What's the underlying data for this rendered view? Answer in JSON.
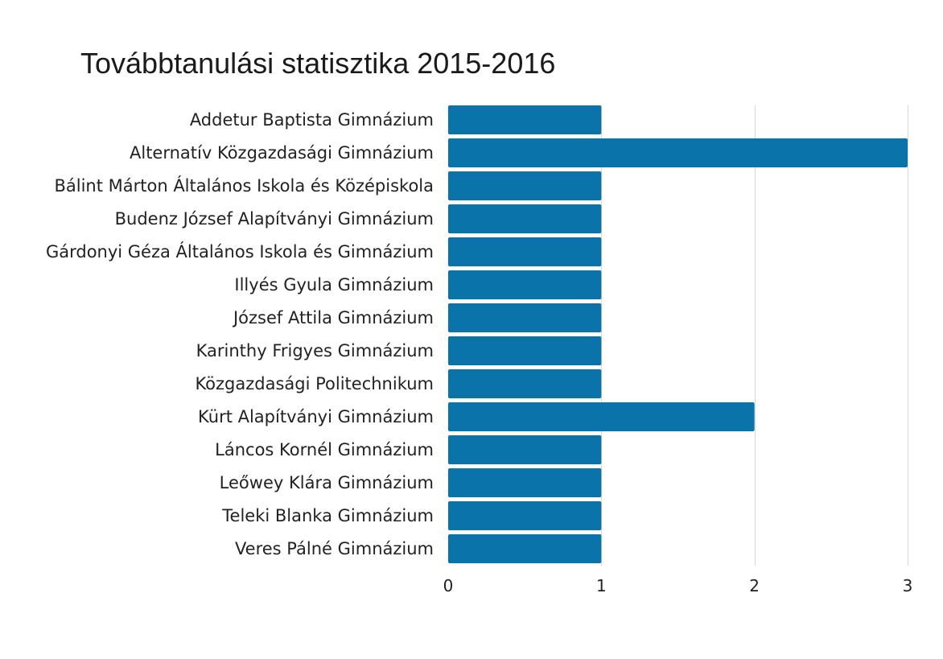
{
  "chart_data": {
    "type": "bar",
    "orientation": "horizontal",
    "title": "Továbbtanulási statisztika 2015-2016",
    "xlabel": "",
    "ylabel": "",
    "categories": [
      "Addetur Baptista Gimnázium",
      "Alternatív Közgazdasági Gimnázium",
      "Bálint Márton Általános Iskola és Középiskola",
      "Budenz József Alapítványi Gimnázium",
      "Gárdonyi Géza Általános Iskola és Gimnázium",
      "Illyés Gyula Gimnázium",
      "József Attila Gimnázium",
      "Karinthy Frigyes Gimnázium",
      "Közgazdasági Politechnikum",
      "Kürt Alapítványi Gimnázium",
      "Láncos Kornél Gimnázium",
      "Leőwey Klára Gimnázium",
      "Teleki Blanka Gimnázium",
      "Veres Pálné Gimnázium"
    ],
    "values": [
      1,
      3,
      1,
      1,
      1,
      1,
      1,
      1,
      1,
      2,
      1,
      1,
      1,
      1
    ],
    "xlim": [
      0,
      3
    ],
    "xticks": [
      "0",
      "1",
      "2",
      "3"
    ],
    "grid": true,
    "legend": "none",
    "bar_color": "#0a73a9"
  }
}
